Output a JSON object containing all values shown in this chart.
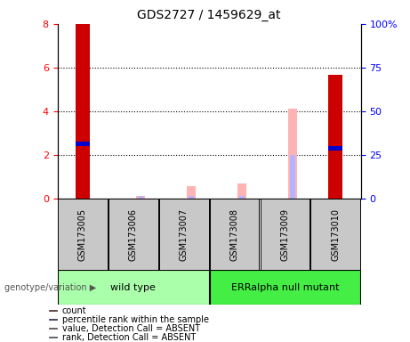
{
  "title": "GDS2727 / 1459629_at",
  "samples": [
    "GSM173005",
    "GSM173006",
    "GSM173007",
    "GSM173008",
    "GSM173009",
    "GSM173010"
  ],
  "count_values": [
    8.0,
    0,
    0,
    0,
    0,
    5.65
  ],
  "percentile_rank": [
    2.5,
    0,
    0,
    0,
    0,
    2.3
  ],
  "value_absent": [
    0,
    0.12,
    0.55,
    0.7,
    4.1,
    0
  ],
  "rank_absent": [
    0,
    0.1,
    0.1,
    0.1,
    2.0,
    0
  ],
  "ylim_left": [
    0,
    8
  ],
  "ylim_right": [
    0,
    100
  ],
  "yticks_left": [
    0,
    2,
    4,
    6,
    8
  ],
  "yticks_right": [
    0,
    25,
    50,
    75,
    100
  ],
  "ytick_labels_right": [
    "0",
    "25",
    "50",
    "75",
    "100%"
  ],
  "count_color": "#cc0000",
  "percentile_color": "#0000cc",
  "value_absent_color": "#ffb3b3",
  "rank_absent_color": "#b3b3ff",
  "group_info": [
    {
      "label": "wild type",
      "start": 0,
      "end": 2,
      "color": "#aaffaa"
    },
    {
      "label": "ERRalpha null mutant",
      "start": 3,
      "end": 5,
      "color": "#44ee44"
    }
  ],
  "bg_color": "#c8c8c8",
  "legend_items": [
    {
      "label": "count",
      "color": "#cc0000"
    },
    {
      "label": "percentile rank within the sample",
      "color": "#0000cc"
    },
    {
      "label": "value, Detection Call = ABSENT",
      "color": "#ffb3b3"
    },
    {
      "label": "rank, Detection Call = ABSENT",
      "color": "#b3b3ff"
    }
  ]
}
